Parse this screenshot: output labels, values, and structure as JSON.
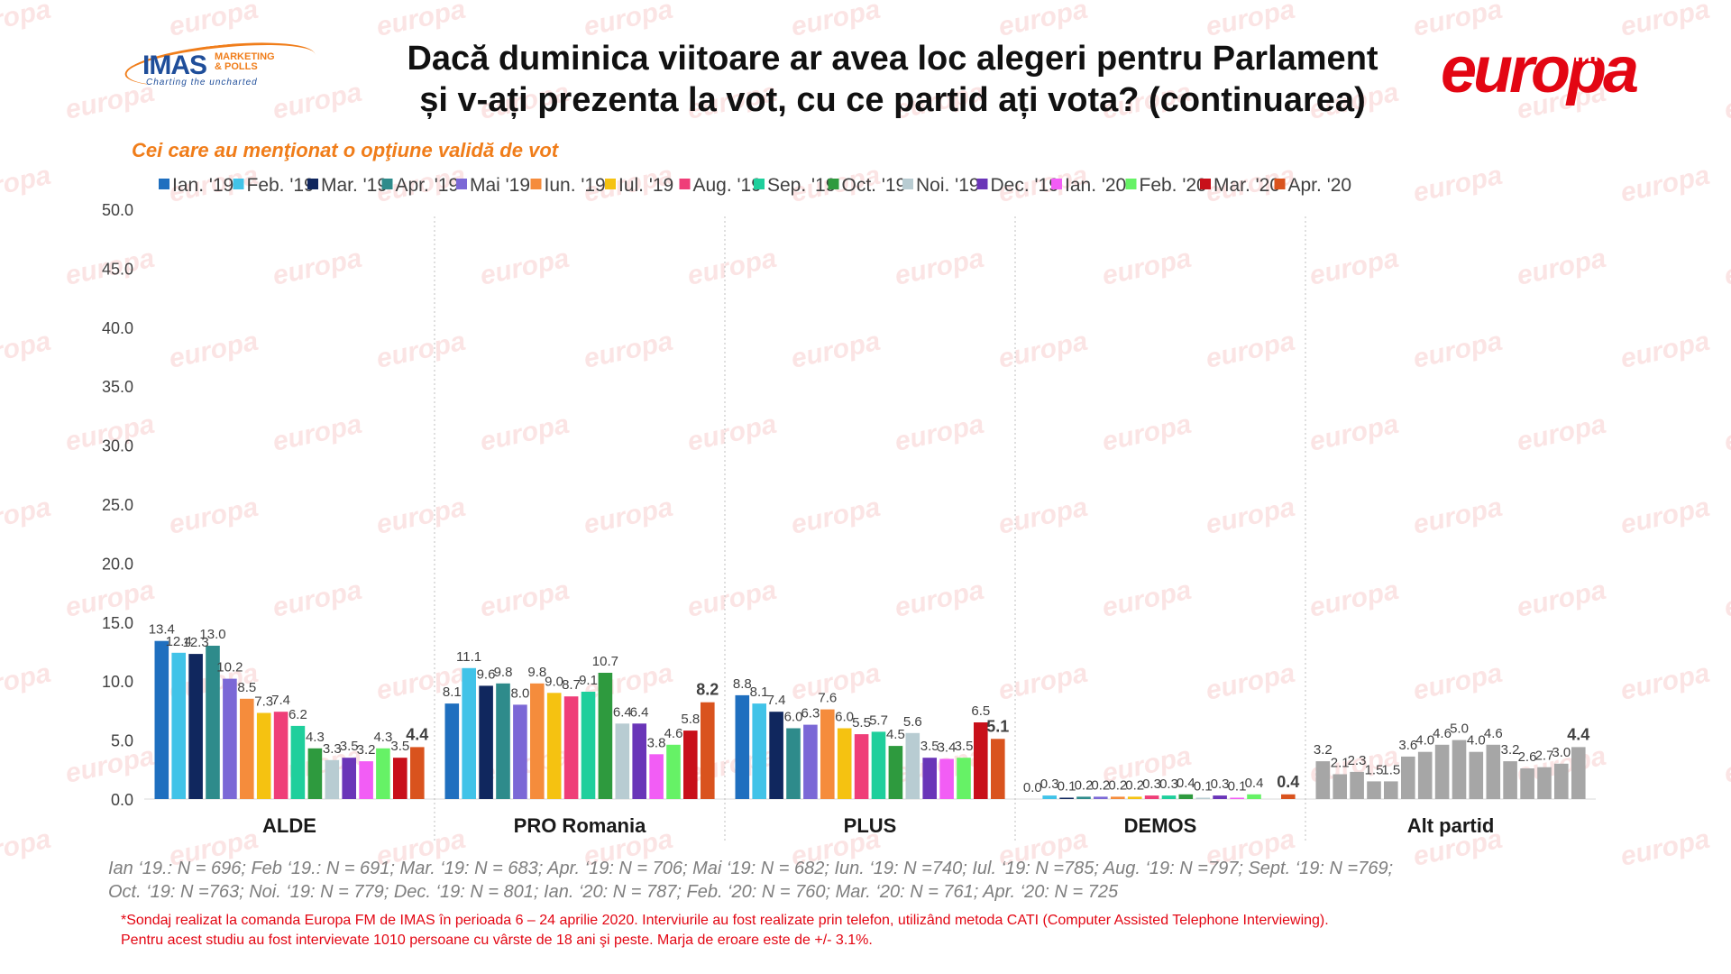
{
  "header": {
    "title_line1": "Dacă duminica viitoare ar avea loc alegeri pentru Parlament",
    "title_line2": "și v-ați prezenta la vot, cu ce partid ați vota? (continuarea)",
    "imas_brand": "IMAS",
    "imas_sub1": "MARKETING",
    "imas_sub2": "& POLLS",
    "imas_tagline": "Charting the uncharted",
    "europa_brand": "europa",
    "europa_fm": "fm",
    "watermark_text": "europa"
  },
  "subtitle": "Cei care au menţionat o opţiune validă de vot",
  "notes": {
    "line1": "Ian ‘19.: N = 696; Feb ‘19.: N = 691; Mar. ‘19: N = 683; Apr. ‘19: N = 706; Mai ‘19: N = 682; Iun. ‘19: N =740; Iul. ‘19: N =785; Aug. ‘19: N =797; Sept. ‘19: N =769;",
    "line2": "Oct. ‘19: N =763; Noi. ‘19: N = 779; Dec. ‘19: N = 801; Ian. ‘20: N = 787; Feb. ‘20: N = 760; Mar. ‘20: N = 761; Apr. ‘20: N = 725"
  },
  "footnote": {
    "line1": "*Sondaj realizat la comanda Europa FM de IMAS în perioada  6 – 24 aprilie 2020. Interviurile au fost realizate prin telefon, utilizând metoda CATI (Computer Assisted Telephone Interviewing).",
    "line2": "Pentru acest studiu au fost intervievate 1010 persoane cu vârste de 18 ani şi peste. Marja de eroare este de +/- 3.1%."
  },
  "colors": {
    "title": "#111111",
    "subtitle": "#f07d1a",
    "footnote": "#e30613",
    "notes": "#7f7f7f",
    "alt_partid_bars": "#a6a6a6"
  },
  "chart_data": {
    "type": "bar",
    "categories": [
      "ALDE",
      "PRO Romania",
      "PLUS",
      "DEMOS",
      "Alt partid"
    ],
    "ylim": [
      0,
      50
    ],
    "yticks": [
      "0.0",
      "5.0",
      "10.0",
      "15.0",
      "20.0",
      "25.0",
      "30.0",
      "35.0",
      "40.0",
      "45.0",
      "50.0"
    ],
    "grid": false,
    "legend_position": "top",
    "bold_last_label": true,
    "series": [
      {
        "name": "Ian. '19",
        "color": "#1f6fbf",
        "values": [
          13.4,
          8.1,
          8.8,
          0.0,
          3.2
        ],
        "labels": [
          "13.4",
          "8.1",
          "8.8",
          "0.0",
          "3.2"
        ]
      },
      {
        "name": "Feb. '19",
        "color": "#41c3e8",
        "values": [
          12.4,
          11.1,
          8.1,
          0.3,
          2.1
        ],
        "labels": [
          "12.4",
          "11.1",
          "8.1",
          "0.3",
          "2.1"
        ]
      },
      {
        "name": "Mar. '19",
        "color": "#10275e",
        "values": [
          12.3,
          9.6,
          7.4,
          0.1,
          2.3
        ],
        "labels": [
          "12.3",
          "9.6",
          "7.4",
          "0.1",
          "2.3"
        ]
      },
      {
        "name": "Apr. '19",
        "color": "#2e8b8b",
        "values": [
          13.0,
          9.8,
          6.0,
          0.2,
          1.5
        ],
        "labels": [
          "13.0",
          "9.8",
          "6.0",
          "0.2",
          "1.5"
        ]
      },
      {
        "name": "Mai '19",
        "color": "#7b68d6",
        "values": [
          10.2,
          8.0,
          6.3,
          0.2,
          1.5
        ],
        "labels": [
          "10.2",
          "8.0",
          "6.3",
          "0.2",
          "1.5"
        ]
      },
      {
        "name": "Iun. '19",
        "color": "#f58c3c",
        "values": [
          8.5,
          9.8,
          7.6,
          0.2,
          3.6
        ],
        "labels": [
          "8.5",
          "9.8",
          "7.6",
          "0.2",
          "3.6"
        ]
      },
      {
        "name": "Iul. '19",
        "color": "#f5c211",
        "values": [
          7.3,
          9.0,
          6.0,
          0.2,
          4.0
        ],
        "labels": [
          "7.3",
          "9.0",
          "6.0",
          "0.2",
          "4.0"
        ]
      },
      {
        "name": "Aug. '19",
        "color": "#ef3e78",
        "values": [
          7.4,
          8.7,
          5.5,
          0.3,
          4.6
        ],
        "labels": [
          "7.4",
          "8.7",
          "5.5",
          "0.3",
          "4.6"
        ]
      },
      {
        "name": "Sep. '19",
        "color": "#1fcf9c",
        "values": [
          6.2,
          9.1,
          5.7,
          0.3,
          5.0
        ],
        "labels": [
          "6.2",
          "9.1",
          "5.7",
          "0.3",
          "5.0"
        ]
      },
      {
        "name": "Oct. '19",
        "color": "#2e9a3e",
        "values": [
          4.3,
          10.7,
          4.5,
          0.4,
          4.0
        ],
        "labels": [
          "4.3",
          "10.7",
          "4.5",
          "0.4",
          "4.0"
        ]
      },
      {
        "name": "Noi. '19",
        "color": "#b8ccd2",
        "values": [
          3.3,
          6.4,
          5.6,
          0.1,
          4.6
        ],
        "labels": [
          "3.3",
          "6.4",
          "5.6",
          "0.1",
          "4.6"
        ]
      },
      {
        "name": "Dec. '19",
        "color": "#6a35b8",
        "values": [
          3.5,
          6.4,
          3.5,
          0.3,
          3.2
        ],
        "labels": [
          "3.5",
          "6.4",
          "3.5",
          "0.3",
          "3.2"
        ]
      },
      {
        "name": "Ian. '20",
        "color": "#f25df5",
        "values": [
          3.2,
          3.8,
          3.4,
          0.1,
          2.6
        ],
        "labels": [
          "3.2",
          "3.8",
          "3.4",
          "0.1",
          "2.6"
        ]
      },
      {
        "name": "Feb. '20",
        "color": "#66f266",
        "values": [
          4.3,
          4.6,
          3.5,
          0.4,
          2.7
        ],
        "labels": [
          "4.3",
          "4.6",
          "3.5",
          "0.4",
          "2.7"
        ]
      },
      {
        "name": "Mar. '20",
        "color": "#c8101a",
        "values": [
          3.5,
          5.8,
          6.5,
          0.0,
          3.0
        ],
        "labels": [
          "3.5",
          "5.8",
          "6.5",
          "",
          "3.0"
        ]
      },
      {
        "name": "Apr. '20",
        "color": "#d9531e",
        "values": [
          4.4,
          8.2,
          5.1,
          0.4,
          4.4
        ],
        "labels": [
          "4.4",
          "8.2",
          "5.1",
          "0.4",
          "4.4"
        ]
      }
    ]
  }
}
